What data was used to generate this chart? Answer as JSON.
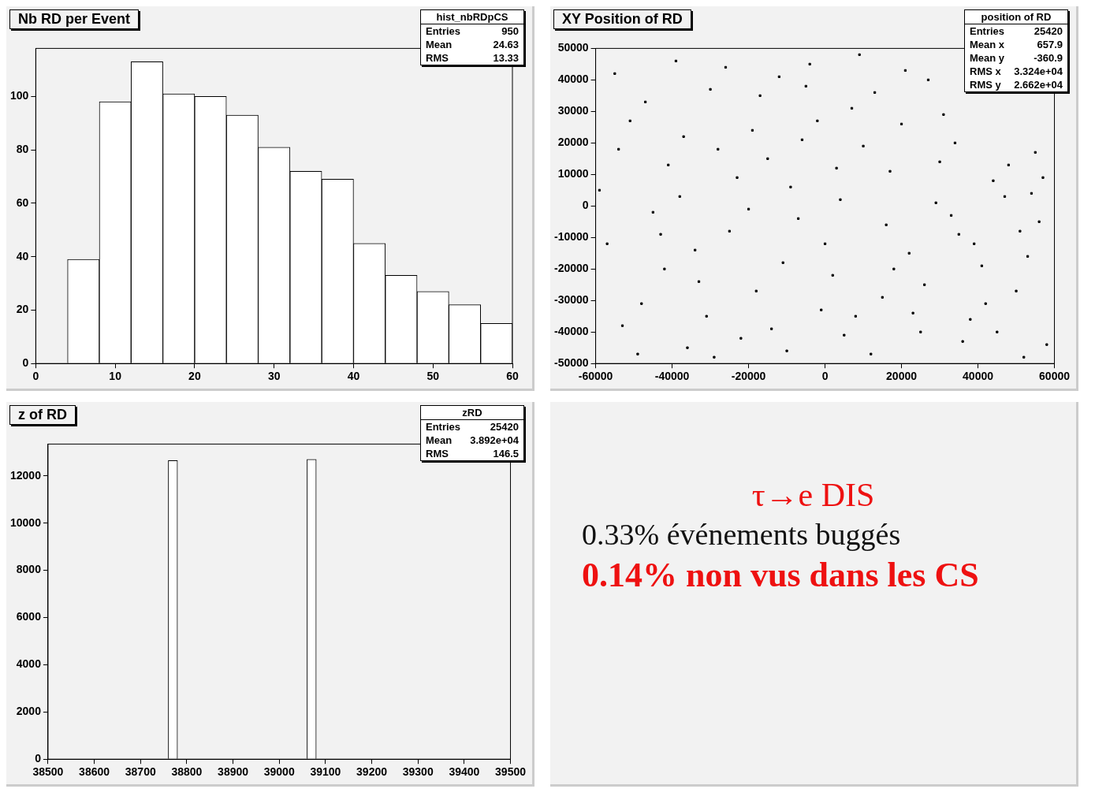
{
  "chart_data": [
    {
      "type": "histogram",
      "title": "Nb RD per Event",
      "annotations": [
        "hist_nbRDpCS",
        "Entries 950",
        "Mean 24.63",
        "RMS 13.33"
      ],
      "bins": [
        4,
        8,
        12,
        16,
        20,
        24,
        28,
        32,
        36,
        40,
        44,
        48,
        52,
        56,
        60
      ],
      "values": [
        39,
        98,
        113,
        101,
        100,
        93,
        81,
        72,
        69,
        45,
        33,
        27,
        22,
        15
      ],
      "color": "#ffffff",
      "xlim": [
        0,
        60
      ],
      "xticks": [
        0,
        10,
        20,
        30,
        40,
        50,
        60
      ],
      "ylim": [
        0,
        118
      ],
      "yticks": [
        0,
        20,
        40,
        60,
        80,
        100
      ],
      "grid": false,
      "legend": false
    },
    {
      "type": "scatter",
      "title": "XY Position of RD",
      "annotations": [
        "position of RD",
        "Entries 25420",
        "Mean x 657.9",
        "Mean y -360.9",
        "RMS x 3.324e+04",
        "RMS y 2.662e+04"
      ],
      "marker": "square",
      "color": "#000000",
      "x": [
        -55000,
        -48000,
        -41000,
        -36000,
        -30000,
        -25000,
        -19000,
        -14000,
        -9000,
        -4000,
        2000,
        7000,
        12000,
        17000,
        22000,
        27000,
        33000,
        38000,
        44000,
        50000,
        55000,
        58000,
        -57000,
        -51000,
        -45000,
        -39000,
        -33000,
        -28000,
        -22000,
        -17000,
        -11000,
        -6000,
        -1000,
        4000,
        9000,
        15000,
        20000,
        25000,
        30000,
        35000,
        41000,
        47000,
        52000,
        56000,
        -59000,
        -53000,
        -47000,
        -42000,
        -37000,
        -31000,
        -26000,
        -20000,
        -15000,
        -10000,
        -5000,
        0,
        5000,
        10000,
        16000,
        21000,
        26000,
        31000,
        36000,
        42000,
        48000,
        53000,
        57000,
        -54000,
        -49000,
        -43000,
        -38000,
        -34000,
        -29000,
        -23000,
        -18000,
        -12000,
        -7000,
        -2000,
        3000,
        8000,
        13000,
        18000,
        23000,
        29000,
        34000,
        39000,
        45000,
        51000,
        54000
      ],
      "values": [
        42000,
        -31000,
        13000,
        -45000,
        37000,
        -8000,
        24000,
        -39000,
        6000,
        45000,
        -22000,
        31000,
        -47000,
        11000,
        -15000,
        40000,
        -3000,
        -36000,
        8000,
        -27000,
        17000,
        -44000,
        -12000,
        27000,
        -2000,
        46000,
        -24000,
        18000,
        -42000,
        35000,
        -18000,
        21000,
        -33000,
        2000,
        48000,
        -29000,
        26000,
        -40000,
        14000,
        -9000,
        -19000,
        3000,
        -48000,
        -5000,
        5000,
        -38000,
        33000,
        -20000,
        22000,
        -35000,
        44000,
        -1000,
        15000,
        -46000,
        38000,
        -12000,
        -41000,
        19000,
        -6000,
        43000,
        -25000,
        29000,
        -43000,
        -31000,
        13000,
        -16000,
        9000,
        18000,
        -47000,
        -9000,
        3000,
        -14000,
        -48000,
        9000,
        -27000,
        41000,
        -4000,
        27000,
        12000,
        -35000,
        36000,
        -20000,
        -34000,
        1000,
        20000,
        -12000,
        -40000,
        -8000,
        4000
      ],
      "xlim": [
        -60000,
        60000
      ],
      "xticks": [
        -60000,
        -40000,
        -20000,
        0,
        20000,
        40000,
        60000
      ],
      "ylim": [
        -50000,
        50000
      ],
      "yticks": [
        -50000,
        -40000,
        -30000,
        -20000,
        -10000,
        0,
        10000,
        20000,
        30000,
        40000,
        50000
      ],
      "grid": false,
      "legend": false
    },
    {
      "type": "histogram",
      "title": "z of RD",
      "annotations": [
        "zRD",
        "Entries 25420",
        "Mean 3.892e+04",
        "RMS 146.5"
      ],
      "bins": [
        38500,
        38520,
        38540,
        38560,
        38580,
        38600,
        38620,
        38640,
        38660,
        38680,
        38700,
        38720,
        38740,
        38760,
        38780,
        38800,
        38820,
        38840,
        38860,
        38880,
        38900,
        38920,
        38940,
        38960,
        38980,
        39000,
        39020,
        39040,
        39060,
        39080,
        39100,
        39120,
        39140,
        39160,
        39180,
        39200,
        39220,
        39240,
        39260,
        39280,
        39300,
        39320,
        39340,
        39360,
        39380,
        39400,
        39420,
        39440,
        39460,
        39480,
        39500
      ],
      "values": [
        0,
        0,
        0,
        0,
        0,
        0,
        0,
        0,
        0,
        0,
        0,
        0,
        0,
        12650,
        0,
        0,
        0,
        0,
        0,
        0,
        0,
        0,
        0,
        0,
        0,
        0,
        0,
        0,
        12700,
        0,
        0,
        0,
        0,
        0,
        0,
        0,
        0,
        0,
        0,
        0,
        0,
        0,
        0,
        0,
        0,
        0,
        0,
        0,
        0,
        0
      ],
      "color": "#ffffff",
      "xlim": [
        38500,
        39500
      ],
      "xticks": [
        38500,
        38600,
        38700,
        38800,
        38900,
        39000,
        39100,
        39200,
        39300,
        39400,
        39500
      ],
      "ylim": [
        0,
        13350
      ],
      "yticks": [
        0,
        2000,
        4000,
        6000,
        8000,
        10000,
        12000
      ],
      "grid": false,
      "legend": false
    },
    {
      "type": "other",
      "annotations": [
        "τ→e DIS",
        "0.33% événements buggés",
        "0.14% non vus dans les CS"
      ]
    }
  ]
}
